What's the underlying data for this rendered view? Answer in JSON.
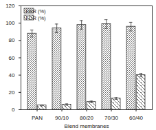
{
  "chart_data": {
    "type": "bar",
    "categories": [
      "PAN",
      "90/10",
      "80/20",
      "70/30",
      "60/40"
    ],
    "series": [
      {
        "name": "FRR (%)",
        "color": "#333333",
        "values": [
          88,
          94,
          98,
          99,
          96
        ],
        "errors": [
          4,
          5,
          5,
          5,
          5
        ]
      },
      {
        "name": "FDR (%)",
        "color": "#333333",
        "values": [
          5,
          6,
          9,
          13,
          40
        ],
        "errors": [
          0.5,
          0.8,
          1,
          1,
          2
        ]
      }
    ],
    "xlabel": "Blend membranes",
    "ylim": [
      0,
      120
    ],
    "yticks": [
      0,
      20,
      40,
      60,
      80,
      100,
      120
    ],
    "legend": "top-left"
  }
}
